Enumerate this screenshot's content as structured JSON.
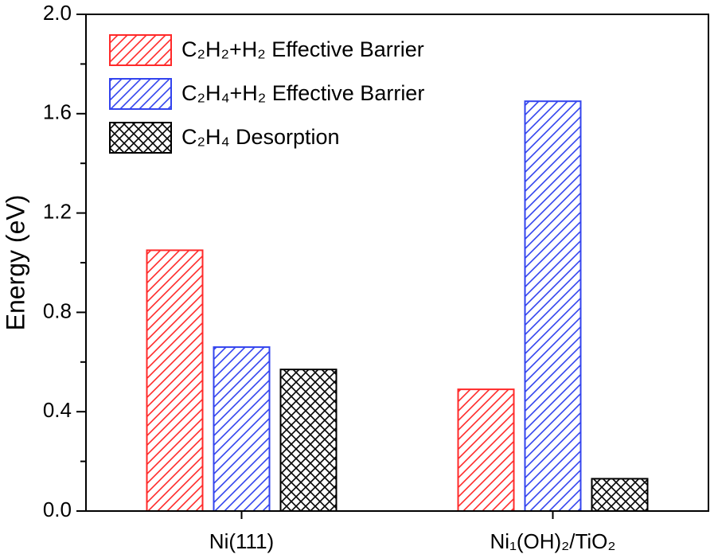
{
  "chart_data": {
    "type": "bar",
    "ylabel": "Energy (eV)",
    "categories": [
      "Ni(111)",
      "Ni₁(OH)₂/TiO₂"
    ],
    "series": [
      {
        "name": "C₂H₂+H₂ Effective Barrier",
        "color": "#ff2a2a",
        "hatch": "/",
        "values": [
          1.05,
          0.49
        ]
      },
      {
        "name": "C₂H₄+H₂ Effective Barrier",
        "color": "#3344ee",
        "hatch": "/",
        "values": [
          0.66,
          1.65
        ]
      },
      {
        "name": "C₂H₄ Desorption",
        "color": "#000000",
        "hatch": "x",
        "values": [
          0.57,
          0.13
        ]
      }
    ],
    "ylim": [
      0,
      2.0
    ],
    "yticks": [
      {
        "value": 0,
        "label": "0.0"
      },
      0.4,
      0.8,
      1.2,
      1.6,
      {
        "value": 2.0,
        "label": "2.0"
      }
    ],
    "legend": "upper-left"
  }
}
